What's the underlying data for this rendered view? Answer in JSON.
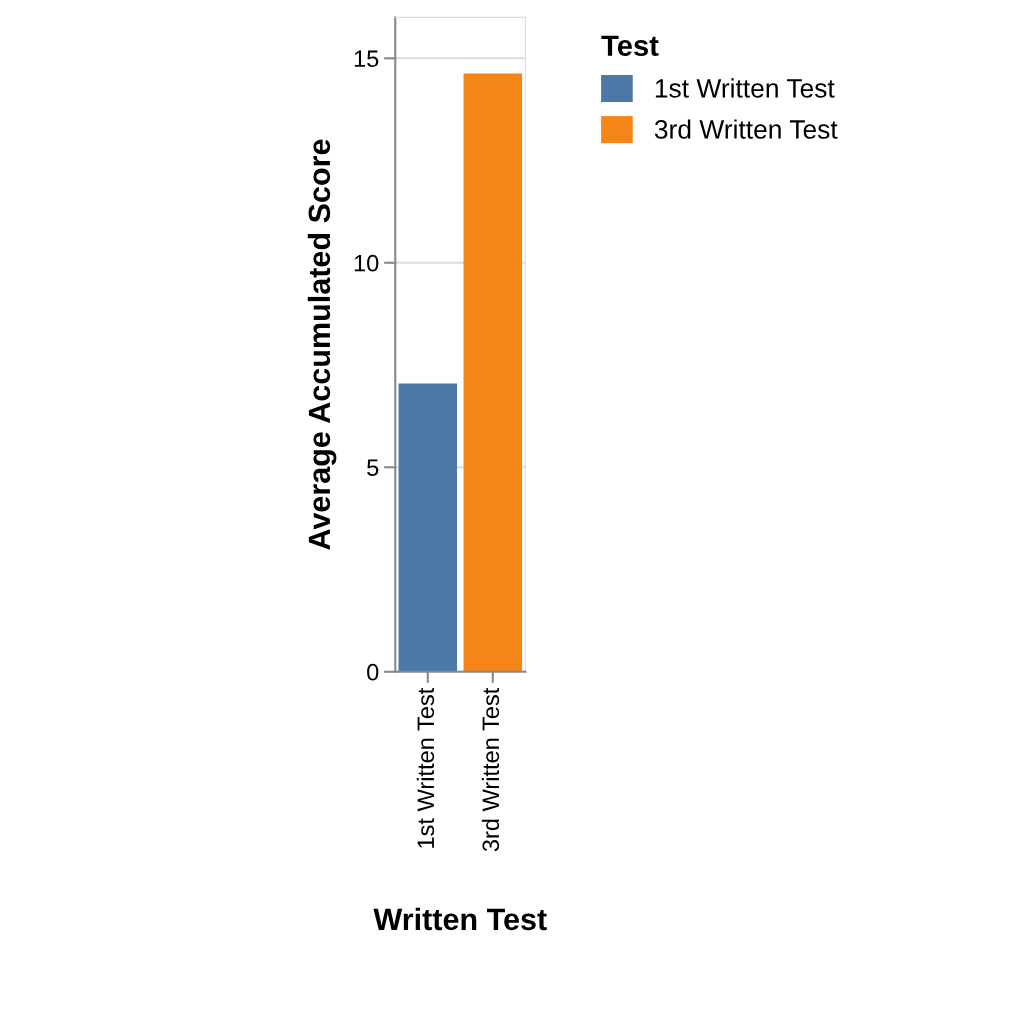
{
  "chart_data": {
    "type": "bar",
    "xlabel": "Written Test",
    "ylabel": "Average Accumulated Score",
    "legend_title": "Test",
    "categories": [
      "1st Written Test",
      "3rd Written Test"
    ],
    "series": [
      {
        "name": "1st Written Test",
        "color": "#4c78a8",
        "values": [
          7.05,
          null
        ]
      },
      {
        "name": "3rd Written Test",
        "color": "#f58518",
        "values": [
          null,
          14.63
        ]
      }
    ],
    "ylim": [
      0,
      16
    ],
    "yticks": [
      0,
      5,
      10,
      15
    ],
    "grid": "y",
    "legend": "top right"
  }
}
